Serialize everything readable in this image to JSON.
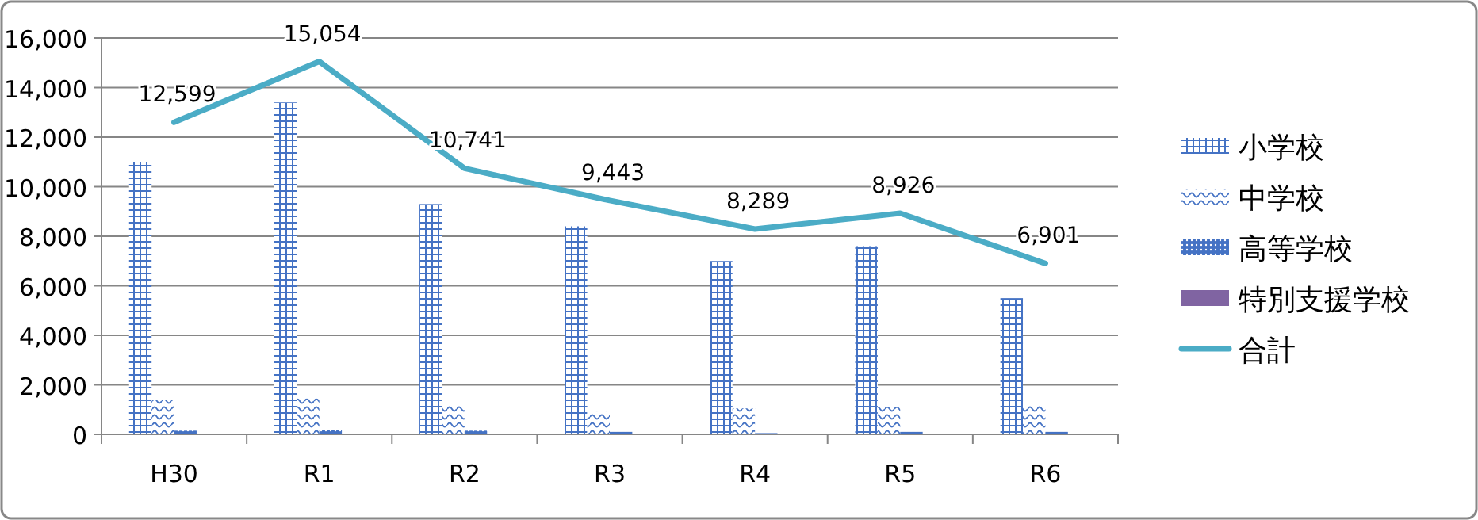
{
  "chart_data": {
    "type": "bar",
    "categories": [
      "H30",
      "R1",
      "R2",
      "R3",
      "R4",
      "R5",
      "R6"
    ],
    "series": [
      {
        "name": "小学校",
        "color": "#4472c4",
        "values": [
          11000,
          13400,
          9300,
          8400,
          7000,
          7600,
          5500
        ]
      },
      {
        "name": "中学校",
        "color": "#4472c4",
        "values": [
          1400,
          1450,
          1200,
          900,
          1050,
          1100,
          1200
        ]
      },
      {
        "name": "高等学校",
        "color": "#4472c4",
        "values": [
          150,
          160,
          150,
          100,
          50,
          100,
          100
        ]
      },
      {
        "name": "特別支援学校",
        "color": "#8064a2",
        "values": [
          null,
          null,
          null,
          null,
          null,
          null,
          null
        ]
      },
      {
        "name": "合計",
        "type": "line",
        "color": "#4bacc6",
        "values": [
          12599,
          15054,
          10741,
          9443,
          8289,
          8926,
          6901
        ],
        "value_labels": [
          "12,599",
          "15,054",
          "10,741",
          "9,443",
          "8,289",
          "8,926",
          "6,901"
        ]
      }
    ],
    "ylim": [
      0,
      16000
    ],
    "yticks": [
      {
        "value": 0,
        "label": "0"
      },
      {
        "value": 2000,
        "label": "2,000"
      },
      {
        "value": 4000,
        "label": "4,000"
      },
      {
        "value": 6000,
        "label": "6,000"
      },
      {
        "value": 8000,
        "label": "8,000"
      },
      {
        "value": 10000,
        "label": "10,000"
      },
      {
        "value": 12000,
        "label": "12,000"
      },
      {
        "value": 14000,
        "label": "14,000"
      },
      {
        "value": 16000,
        "label": "16,000"
      }
    ],
    "grid": "y",
    "legend": "right",
    "line_style": "solid",
    "marker": "none"
  }
}
